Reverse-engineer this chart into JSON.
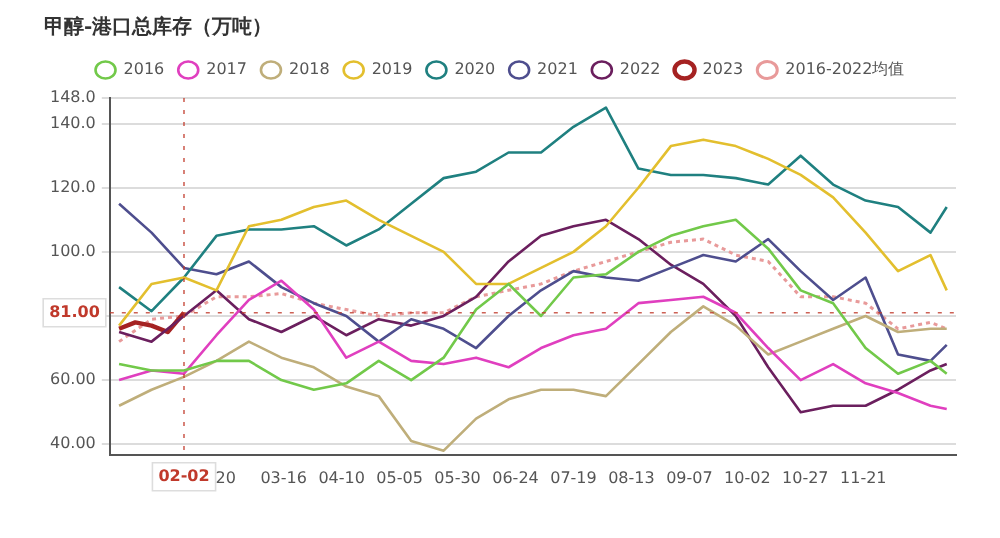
{
  "chart_data": {
    "type": "line",
    "title": "甲醇-港口总库存（万吨）",
    "x": [
      "--01-05",
      "--01-19",
      "--02-02",
      "--02-16",
      "--03-01",
      "--03-15",
      "--03-29",
      "--04-12",
      "--04-26",
      "--05-10",
      "--05-24",
      "--06-07",
      "--06-21",
      "--07-05",
      "--07-19",
      "--08-02",
      "--08-16",
      "--08-30",
      "--09-13",
      "--09-27",
      "--10-11",
      "--10-25",
      "--11-08",
      "--11-22",
      "--12-06",
      "--12-20",
      "--12-27"
    ],
    "series": [
      {
        "name": "2016",
        "color": "#72c94a",
        "values": [
          65,
          63,
          63,
          66,
          66,
          60,
          57,
          59,
          66,
          60,
          67,
          82,
          90,
          80,
          92,
          93,
          100,
          105,
          108,
          110,
          101,
          88,
          84,
          70,
          62,
          66,
          62
        ]
      },
      {
        "name": "2017",
        "color": "#e03fbf",
        "values": [
          60,
          63,
          62,
          74,
          85,
          91,
          82,
          67,
          72,
          66,
          65,
          67,
          64,
          70,
          74,
          76,
          84,
          85,
          86,
          81,
          70,
          60,
          65,
          59,
          56,
          52,
          51
        ]
      },
      {
        "name": "2018",
        "color": "#bfae7a",
        "values": [
          52,
          57,
          61,
          66,
          72,
          67,
          64,
          58,
          55,
          41,
          38,
          48,
          54,
          57,
          57,
          55,
          65,
          75,
          83,
          77,
          68,
          72,
          76,
          80,
          75,
          76,
          76
        ]
      },
      {
        "name": "2019",
        "color": "#e3bf2e",
        "values": [
          77,
          90,
          92,
          88,
          108,
          110,
          114,
          116,
          110,
          105,
          100,
          90,
          90,
          95,
          100,
          108,
          120,
          133,
          135,
          133,
          129,
          124,
          117,
          106,
          94,
          99,
          88
        ]
      },
      {
        "name": "2020",
        "color": "#1f8080",
        "values": [
          89,
          81.5,
          92,
          105,
          107,
          107,
          108,
          102,
          107,
          115,
          123,
          125,
          131,
          131,
          139,
          145,
          126,
          124,
          124,
          123,
          121,
          130,
          121,
          116,
          114,
          106,
          114
        ]
      },
      {
        "name": "2021",
        "color": "#4e4e8e",
        "values": [
          115,
          106,
          95,
          93,
          97,
          89,
          84,
          80,
          72,
          79,
          76,
          70,
          80,
          88,
          94,
          92,
          91,
          95,
          99,
          97,
          104,
          94,
          85,
          92,
          68,
          66,
          71
        ]
      },
      {
        "name": "2022",
        "color": "#6b1f5e",
        "values": [
          75,
          72,
          80,
          88,
          79,
          75,
          80,
          74,
          79,
          77,
          80,
          86,
          97,
          105,
          108,
          110,
          104,
          96,
          90,
          80,
          64,
          50,
          52,
          52,
          57,
          63,
          65
        ]
      },
      {
        "name": "2023",
        "color": "#a52222",
        "x": [
          "--01-05",
          "--01-12",
          "--01-19",
          "--01-26",
          "--02-02"
        ],
        "values": [
          76,
          78,
          77,
          75,
          81
        ]
      },
      {
        "name": "2016-2022均值",
        "color": "#e89a9a",
        "line_style": "dotted",
        "values": [
          72,
          79,
          80,
          86,
          86,
          87,
          84,
          82,
          80,
          81,
          81,
          86,
          88,
          90,
          94,
          97,
          100,
          103,
          104,
          99,
          97,
          86,
          86,
          84,
          76,
          78,
          76
        ]
      }
    ],
    "xlim": [
      "--01-01",
      "--12-31"
    ],
    "xticks": [
      {
        "value": "--02-20",
        "label": "20"
      },
      {
        "value": "--03-16",
        "label": "03-16"
      },
      {
        "value": "--04-10",
        "label": "04-10"
      },
      {
        "value": "--05-05",
        "label": "05-05"
      },
      {
        "value": "--05-30",
        "label": "05-30"
      },
      {
        "value": "--06-24",
        "label": "06-24"
      },
      {
        "value": "--07-19",
        "label": "07-19"
      },
      {
        "value": "--08-13",
        "label": "08-13"
      },
      {
        "value": "--09-07",
        "label": "09-07"
      },
      {
        "value": "--10-02",
        "label": "10-02"
      },
      {
        "value": "--10-27",
        "label": "10-27"
      },
      {
        "value": "--11-21",
        "label": "11-21"
      }
    ],
    "ylim": [
      36.7,
      148
    ],
    "yticks": [
      {
        "value": 40,
        "label": "40.00"
      },
      {
        "value": 60,
        "label": "60.00"
      },
      {
        "value": 80,
        "label": null
      },
      {
        "value": 100,
        "label": "100.0"
      },
      {
        "value": 120,
        "label": "120.0"
      },
      {
        "value": 140,
        "label": "140.0"
      },
      {
        "value": 148,
        "label": "148.0"
      }
    ],
    "ref_lines": [
      {
        "axis": "y",
        "value": 81,
        "label": "81.00",
        "color": "#c0392b"
      },
      {
        "axis": "x",
        "value": "--02-02",
        "label": "02-02",
        "color": "#c0392b"
      }
    ],
    "grid": "y",
    "legend": "top",
    "marker": "none",
    "line_style": "solid"
  }
}
